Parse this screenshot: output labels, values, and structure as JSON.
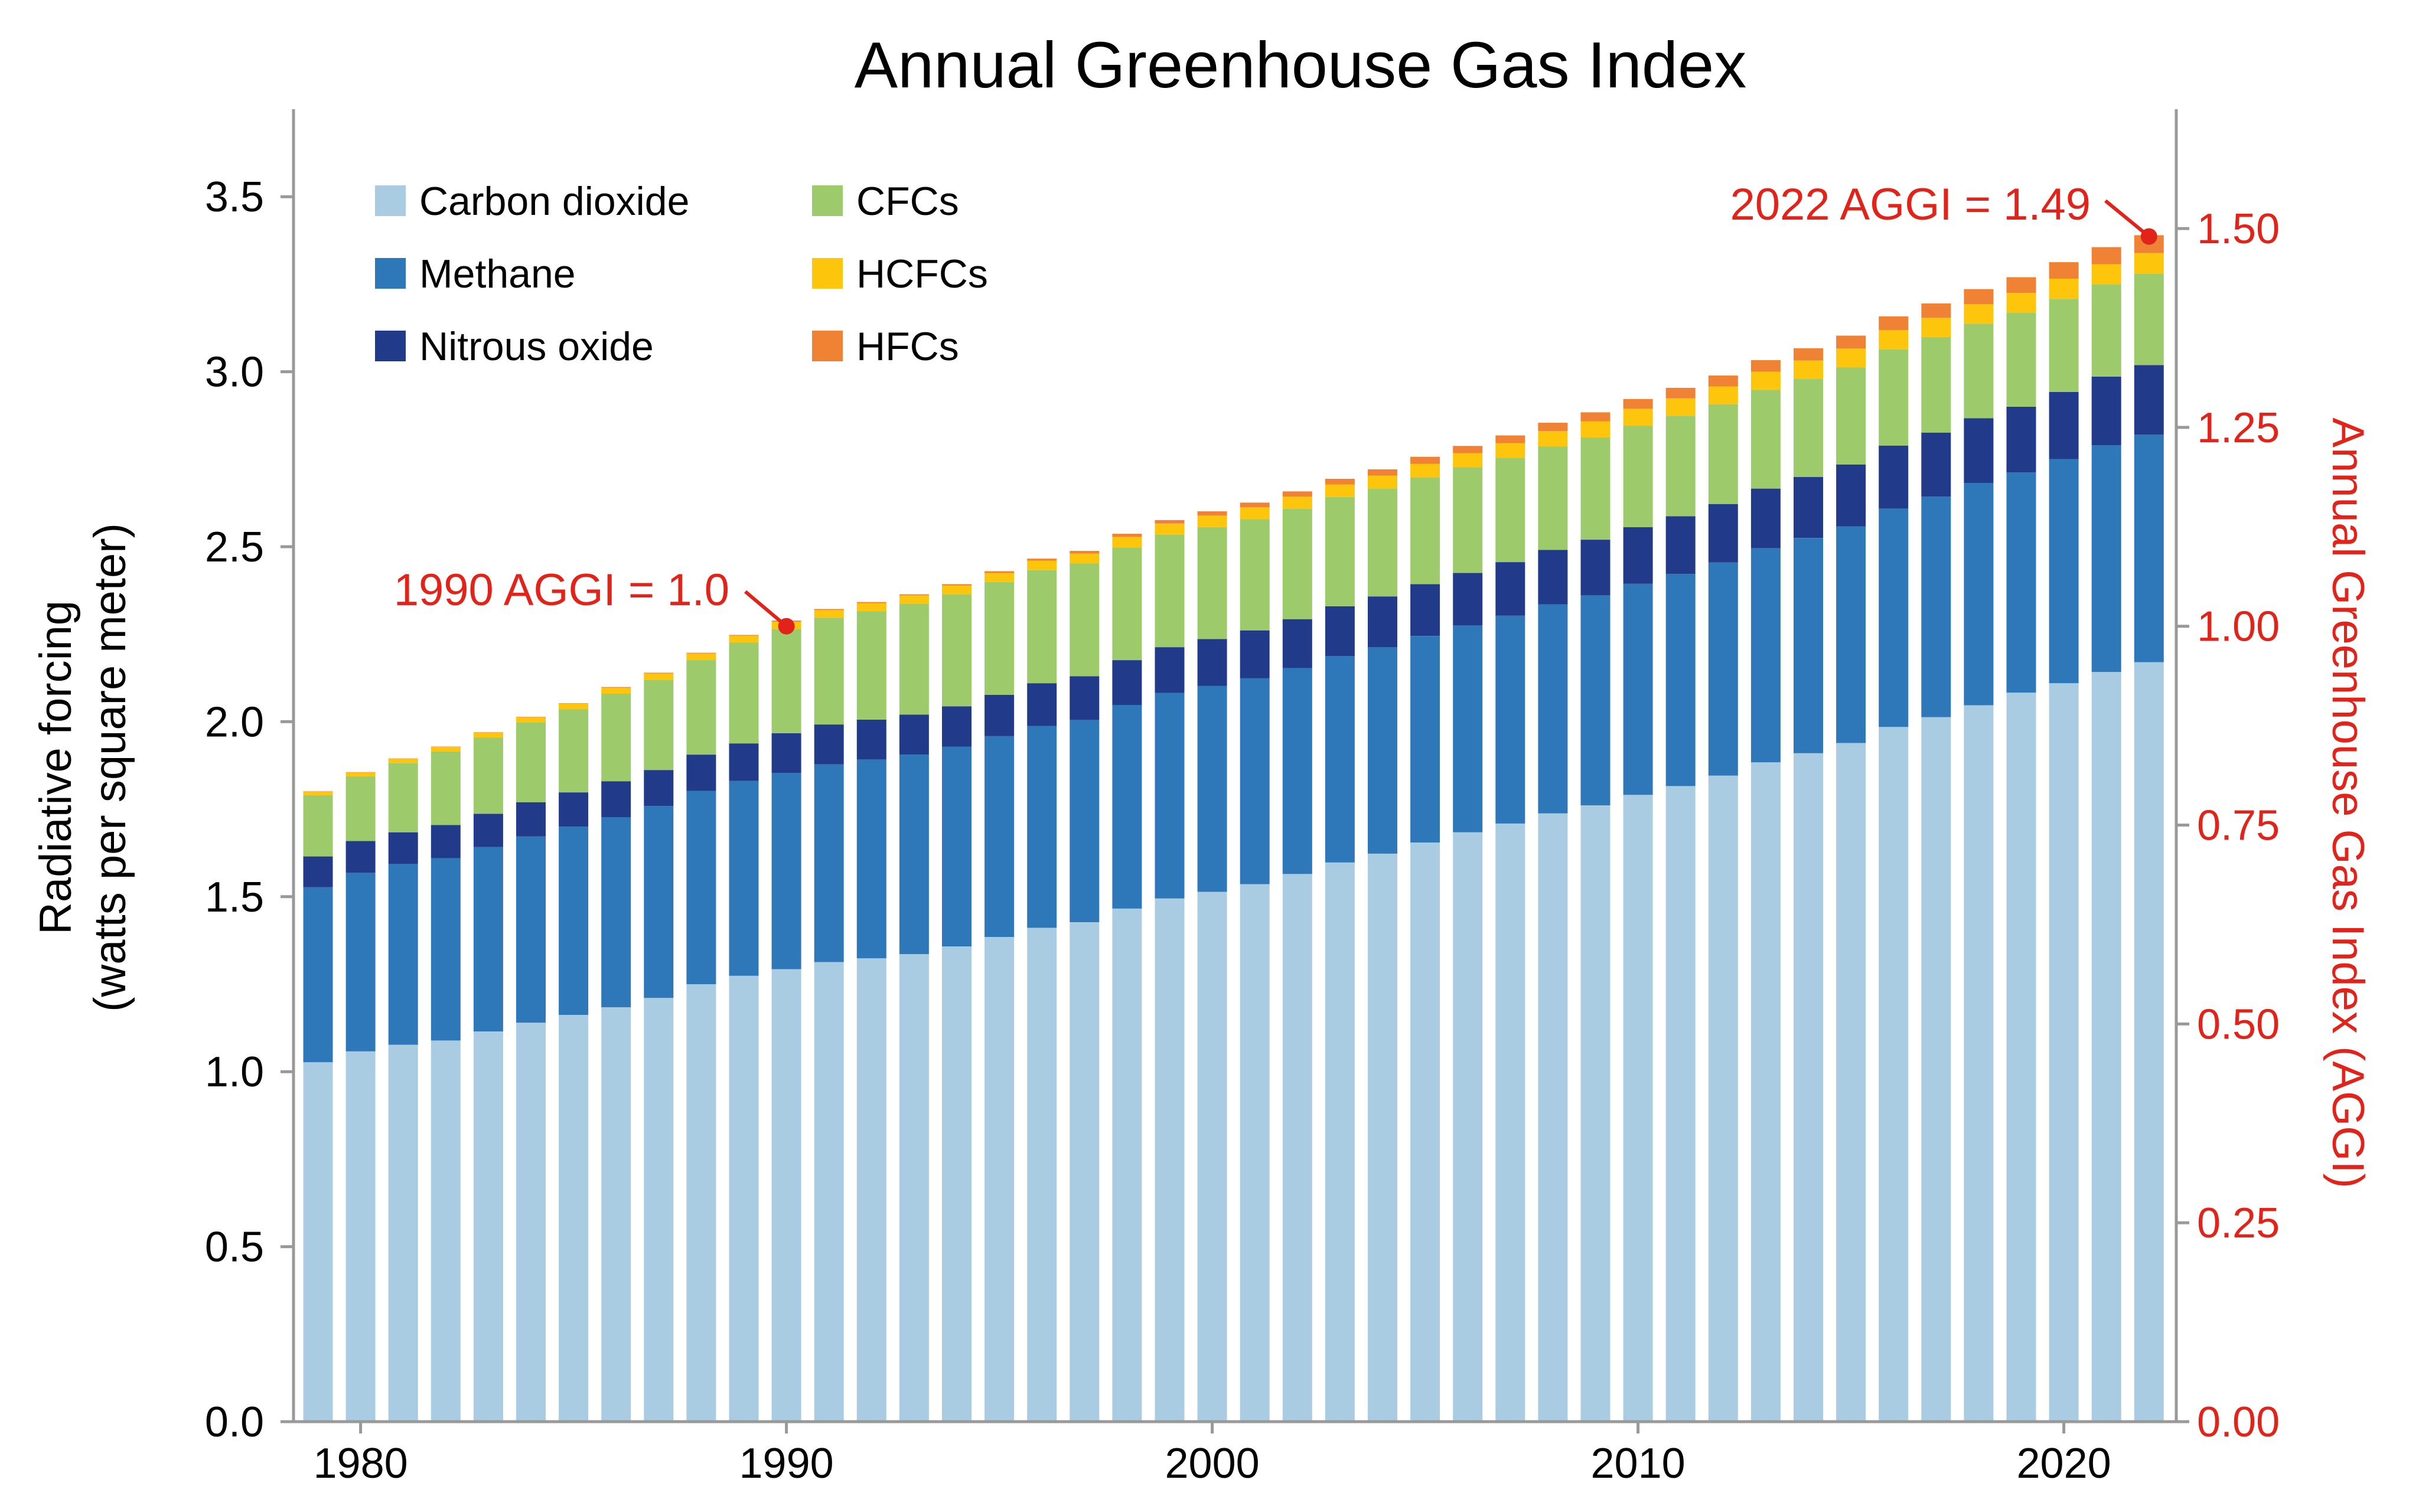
{
  "chart_data": {
    "type": "bar",
    "stacked": true,
    "title": "Annual Greenhouse Gas Index",
    "ylabel": [
      "Radiative forcing",
      "(watts per square meter)"
    ],
    "y2label": "Annual Greenhouse Gas Index (AGGI)",
    "ylim": [
      0,
      3.75
    ],
    "y2lim": [
      0,
      1.65
    ],
    "yticks": [
      "0.0",
      "0.5",
      "1.0",
      "1.5",
      "2.0",
      "2.5",
      "3.0",
      "3.5"
    ],
    "y2ticks": [
      "0.00",
      "0.25",
      "0.50",
      "0.75",
      "1.00",
      "1.25",
      "1.50"
    ],
    "xtick_labels": [
      "1980",
      "1990",
      "2000",
      "2010",
      "2020"
    ],
    "x": [
      1979,
      1980,
      1981,
      1982,
      1983,
      1984,
      1985,
      1986,
      1987,
      1988,
      1989,
      1990,
      1991,
      1992,
      1993,
      1994,
      1995,
      1996,
      1997,
      1998,
      1999,
      2000,
      2001,
      2002,
      2003,
      2004,
      2005,
      2006,
      2007,
      2008,
      2009,
      2010,
      2011,
      2012,
      2013,
      2014,
      2015,
      2016,
      2017,
      2018,
      2019,
      2020,
      2021,
      2022
    ],
    "grid": false,
    "legend_position": "top-left",
    "series": [
      {
        "name": "Carbon dioxide",
        "color": "#a9cce3",
        "values": [
          1.027,
          1.058,
          1.077,
          1.089,
          1.115,
          1.14,
          1.162,
          1.184,
          1.211,
          1.25,
          1.274,
          1.293,
          1.313,
          1.324,
          1.336,
          1.358,
          1.385,
          1.411,
          1.427,
          1.466,
          1.495,
          1.514,
          1.536,
          1.565,
          1.598,
          1.623,
          1.655,
          1.684,
          1.709,
          1.738,
          1.761,
          1.791,
          1.816,
          1.846,
          1.884,
          1.91,
          1.939,
          1.985,
          2.013,
          2.047,
          2.083,
          2.11,
          2.142,
          2.17
        ]
      },
      {
        "name": "Methane",
        "color": "#2e78b9",
        "values": [
          0.5,
          0.51,
          0.516,
          0.521,
          0.527,
          0.532,
          0.538,
          0.543,
          0.548,
          0.552,
          0.557,
          0.561,
          0.565,
          0.568,
          0.57,
          0.571,
          0.574,
          0.577,
          0.578,
          0.582,
          0.587,
          0.588,
          0.588,
          0.588,
          0.59,
          0.59,
          0.59,
          0.591,
          0.594,
          0.597,
          0.6,
          0.603,
          0.606,
          0.609,
          0.612,
          0.615,
          0.619,
          0.624,
          0.63,
          0.635,
          0.629,
          0.64,
          0.648,
          0.65
        ]
      },
      {
        "name": "Nitrous oxide",
        "color": "#223a8a",
        "values": [
          0.088,
          0.091,
          0.091,
          0.095,
          0.095,
          0.098,
          0.098,
          0.103,
          0.103,
          0.104,
          0.107,
          0.113,
          0.114,
          0.114,
          0.114,
          0.115,
          0.118,
          0.122,
          0.125,
          0.128,
          0.131,
          0.134,
          0.137,
          0.14,
          0.142,
          0.145,
          0.148,
          0.15,
          0.153,
          0.156,
          0.159,
          0.162,
          0.165,
          0.167,
          0.17,
          0.174,
          0.177,
          0.18,
          0.183,
          0.185,
          0.188,
          0.192,
          0.196,
          0.199
        ]
      },
      {
        "name": "CFCs",
        "color": "#9dcb6b",
        "values": [
          0.175,
          0.185,
          0.198,
          0.21,
          0.218,
          0.228,
          0.238,
          0.25,
          0.258,
          0.27,
          0.288,
          0.298,
          0.305,
          0.31,
          0.317,
          0.32,
          0.322,
          0.323,
          0.322,
          0.322,
          0.322,
          0.32,
          0.318,
          0.315,
          0.312,
          0.308,
          0.305,
          0.302,
          0.298,
          0.295,
          0.292,
          0.29,
          0.287,
          0.285,
          0.282,
          0.28,
          0.277,
          0.275,
          0.273,
          0.27,
          0.268,
          0.266,
          0.263,
          0.261
        ]
      },
      {
        "name": "HCFCs",
        "color": "#fdc50b",
        "values": [
          0.01,
          0.011,
          0.012,
          0.013,
          0.014,
          0.015,
          0.016,
          0.017,
          0.018,
          0.019,
          0.02,
          0.021,
          0.022,
          0.023,
          0.024,
          0.025,
          0.026,
          0.027,
          0.028,
          0.03,
          0.031,
          0.033,
          0.034,
          0.035,
          0.036,
          0.037,
          0.039,
          0.04,
          0.042,
          0.044,
          0.046,
          0.048,
          0.05,
          0.051,
          0.052,
          0.053,
          0.054,
          0.055,
          0.055,
          0.056,
          0.057,
          0.058,
          0.058,
          0.059
        ]
      },
      {
        "name": "HFCs",
        "color": "#ef8235",
        "values": [
          0.001,
          0.001,
          0.001,
          0.001,
          0.001,
          0.001,
          0.001,
          0.002,
          0.002,
          0.002,
          0.002,
          0.003,
          0.003,
          0.003,
          0.003,
          0.004,
          0.005,
          0.006,
          0.008,
          0.009,
          0.01,
          0.012,
          0.013,
          0.015,
          0.016,
          0.018,
          0.02,
          0.021,
          0.022,
          0.024,
          0.026,
          0.028,
          0.03,
          0.031,
          0.033,
          0.035,
          0.037,
          0.039,
          0.041,
          0.043,
          0.045,
          0.047,
          0.049,
          0.051
        ]
      }
    ],
    "annotations": [
      {
        "text": "1990 AGGI = 1.0",
        "x": 1990,
        "aggi": 1.0,
        "color": "#e2231a"
      },
      {
        "text": "2022 AGGI = 1.49",
        "x": 2022,
        "aggi": 1.49,
        "color": "#e2231a"
      }
    ],
    "colors": {
      "axis": "#999999",
      "text": "#000000",
      "accent": "#e2231a"
    }
  }
}
